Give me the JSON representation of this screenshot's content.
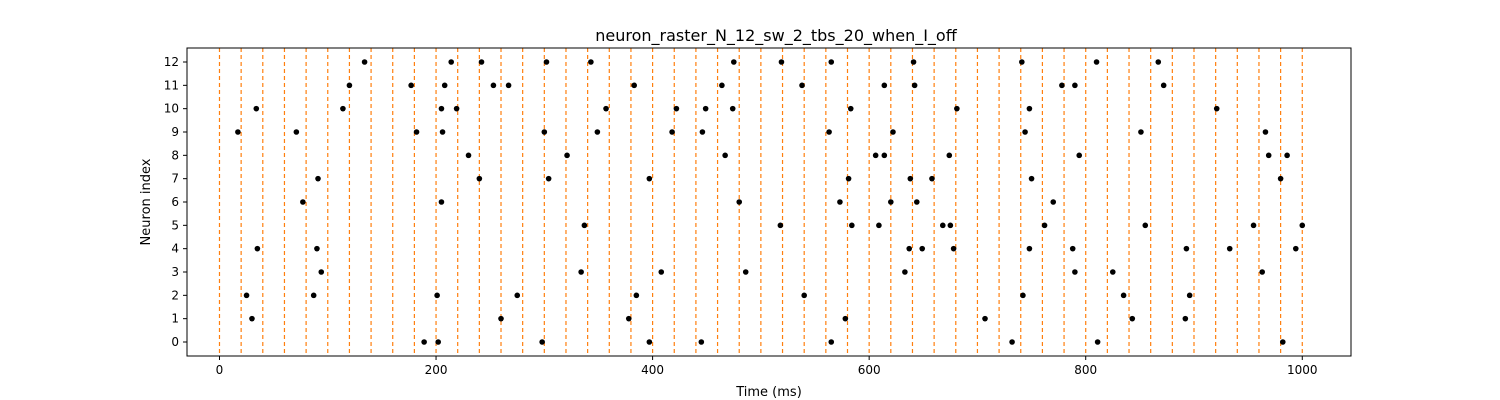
{
  "chart_data": {
    "type": "scatter",
    "title": "neuron_raster_N_12_sw_2_tbs_20_when_I_off",
    "xlabel": "Time (ms)",
    "ylabel": "Neuron index",
    "xlim": [
      -30,
      1045
    ],
    "ylim": [
      -0.6,
      12.6
    ],
    "xticks": [
      0,
      200,
      400,
      600,
      800,
      1000
    ],
    "yticks": [
      0,
      1,
      2,
      3,
      4,
      5,
      6,
      7,
      8,
      9,
      10,
      11,
      12
    ],
    "grid": false,
    "marker_color": "#000000",
    "vline_color": "#ff7f0e",
    "vline_style": "dashed",
    "vlines_x": [
      0,
      20,
      40,
      60,
      80,
      100,
      120,
      140,
      160,
      180,
      200,
      220,
      240,
      260,
      280,
      300,
      320,
      340,
      360,
      380,
      400,
      420,
      440,
      460,
      480,
      500,
      520,
      540,
      560,
      580,
      600,
      620,
      640,
      660,
      680,
      700,
      720,
      740,
      760,
      780,
      800,
      820,
      840,
      860,
      880,
      900,
      920,
      940,
      960,
      980,
      1000
    ],
    "series": [
      {
        "neuron": 0,
        "spikes": [
          189,
          202,
          298,
          397,
          445,
          565,
          732,
          811,
          982
        ]
      },
      {
        "neuron": 1,
        "spikes": [
          30,
          260,
          378,
          578,
          707,
          843,
          892
        ]
      },
      {
        "neuron": 2,
        "spikes": [
          25,
          87,
          201,
          275,
          385,
          540,
          742,
          835,
          896
        ]
      },
      {
        "neuron": 3,
        "spikes": [
          94,
          334,
          408,
          486,
          633,
          790,
          825,
          963
        ]
      },
      {
        "neuron": 4,
        "spikes": [
          35,
          90,
          637,
          649,
          678,
          748,
          788,
          893,
          933,
          994
        ]
      },
      {
        "neuron": 5,
        "spikes": [
          337,
          518,
          584,
          609,
          668,
          675,
          762,
          855,
          955,
          1000
        ]
      },
      {
        "neuron": 6,
        "spikes": [
          77,
          205,
          480,
          573,
          620,
          644,
          770
        ]
      },
      {
        "neuron": 7,
        "spikes": [
          91,
          240,
          304,
          397,
          581,
          638,
          658,
          750,
          980
        ]
      },
      {
        "neuron": 8,
        "spikes": [
          230,
          321,
          467,
          606,
          614,
          674,
          794,
          969,
          986
        ]
      },
      {
        "neuron": 9,
        "spikes": [
          17,
          71,
          182,
          206,
          300,
          349,
          418,
          446,
          563,
          622,
          744,
          851,
          966
        ]
      },
      {
        "neuron": 10,
        "spikes": [
          34,
          114,
          205,
          219,
          357,
          422,
          449,
          474,
          583,
          681,
          748,
          921
        ]
      },
      {
        "neuron": 11,
        "spikes": [
          120,
          177,
          208,
          253,
          267,
          383,
          464,
          538,
          614,
          642,
          778,
          790,
          872
        ]
      },
      {
        "neuron": 12,
        "spikes": [
          134,
          214,
          242,
          302,
          343,
          475,
          519,
          565,
          641,
          741,
          810,
          867
        ]
      }
    ]
  }
}
